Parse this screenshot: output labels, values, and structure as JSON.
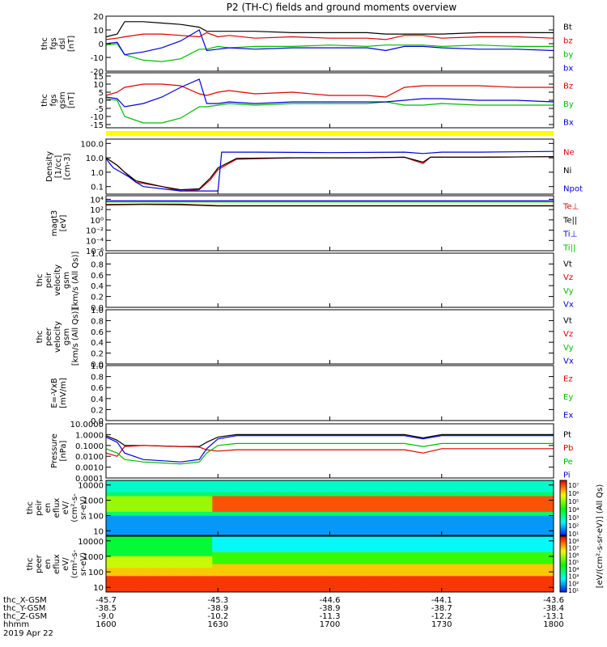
{
  "title": "P2 (TH-C) fields and ground moments overview",
  "chart_data": [
    {
      "type": "line",
      "id": "fgs_dsl",
      "ylabel": [
        "thc",
        "fgs",
        "dsl",
        "[nT]"
      ],
      "ylim": [
        -20,
        20
      ],
      "yticks": [
        "20",
        "10",
        "0",
        "-10",
        "-20"
      ],
      "yticks_values": [
        20,
        10,
        0,
        -10,
        -20
      ],
      "series": [
        {
          "name": "Bt",
          "color": "#000000",
          "x": [
            0,
            3,
            5,
            10,
            15,
            20,
            25,
            27,
            30,
            33,
            40,
            50,
            60,
            70,
            75,
            80,
            85,
            90,
            100,
            110,
            120
          ],
          "y": [
            5,
            7,
            16,
            16,
            15,
            14,
            12,
            9,
            9,
            9,
            9,
            8,
            8,
            8,
            7,
            7,
            7,
            7,
            8,
            8,
            8
          ]
        },
        {
          "name": "bz",
          "color": "#dd0000",
          "x": [
            0,
            3,
            5,
            10,
            15,
            20,
            25,
            27,
            30,
            33,
            40,
            50,
            60,
            70,
            75,
            80,
            85,
            90,
            100,
            110,
            120
          ],
          "y": [
            3,
            4,
            5,
            7,
            7,
            6,
            5,
            8,
            5,
            6,
            4,
            5,
            4,
            4,
            3,
            6,
            6,
            4,
            5,
            5,
            4
          ]
        },
        {
          "name": "by",
          "color": "#00bb00",
          "x": [
            0,
            3,
            5,
            10,
            15,
            20,
            25,
            27,
            30,
            33,
            40,
            50,
            60,
            70,
            75,
            80,
            85,
            90,
            100,
            110,
            120
          ],
          "y": [
            -1,
            0,
            -8,
            -12,
            -13,
            -11,
            -4,
            -4,
            -2,
            -3,
            -2,
            -2,
            -1,
            -2,
            -1,
            -1,
            -1,
            -2,
            -1,
            -2,
            -2
          ]
        },
        {
          "name": "bx",
          "color": "#0000dd",
          "x": [
            0,
            3,
            5,
            10,
            15,
            20,
            25,
            27,
            30,
            33,
            40,
            50,
            60,
            70,
            75,
            80,
            85,
            90,
            100,
            110,
            120
          ],
          "y": [
            0,
            1,
            -8,
            -6,
            -3,
            2,
            10,
            -5,
            -4,
            -3,
            -4,
            -3,
            -3,
            -3,
            -5,
            -2,
            -2,
            -3,
            -4,
            -4,
            -5
          ]
        }
      ]
    },
    {
      "type": "line",
      "id": "fgs_gsm",
      "ylabel": [
        "thc",
        "fgs",
        "gsm",
        "[nT]"
      ],
      "ylim": [
        -17,
        17
      ],
      "yticks": [
        "15",
        "10",
        "5",
        "0",
        "-5",
        "-10",
        "-15"
      ],
      "yticks_values": [
        15,
        10,
        5,
        0,
        -5,
        -10,
        -15
      ],
      "series": [
        {
          "name": "Bz",
          "color": "#dd0000",
          "x": [
            0,
            3,
            5,
            10,
            15,
            20,
            25,
            27,
            30,
            33,
            40,
            50,
            60,
            70,
            75,
            80,
            85,
            90,
            100,
            110,
            120
          ],
          "y": [
            3,
            5,
            8,
            10,
            10,
            9,
            4,
            3,
            5,
            6,
            4,
            5,
            3,
            3,
            2,
            8,
            9,
            9,
            9,
            8,
            8
          ]
        },
        {
          "name": "By",
          "color": "#00bb00",
          "x": [
            0,
            3,
            5,
            10,
            15,
            20,
            25,
            27,
            30,
            33,
            40,
            50,
            60,
            70,
            75,
            80,
            85,
            90,
            100,
            110,
            120
          ],
          "y": [
            1,
            0,
            -10,
            -14,
            -14,
            -11,
            -4,
            -4,
            -3,
            -2,
            -3,
            -2,
            -2,
            -2,
            -1,
            -3,
            -3,
            -2,
            -3,
            -3,
            -3
          ]
        },
        {
          "name": "Bx",
          "color": "#0000dd",
          "x": [
            0,
            3,
            5,
            10,
            15,
            20,
            25,
            27,
            30,
            33,
            40,
            50,
            60,
            70,
            75,
            80,
            85,
            90,
            100,
            110,
            120
          ],
          "y": [
            2,
            1,
            -4,
            -2,
            2,
            8,
            13,
            -2,
            -2,
            -1,
            -2,
            -1,
            -1,
            -1,
            -1,
            0,
            1,
            1,
            0,
            0,
            -1
          ]
        }
      ]
    },
    {
      "type": "line",
      "id": "density",
      "ylabel": [
        "Density",
        "[1/cc]",
        "[cm-3]"
      ],
      "scale": "log",
      "ylim": [
        0.03,
        200
      ],
      "yticks": [
        "100.0",
        "10.0",
        "1.0",
        "0.1"
      ],
      "yticks_values": [
        100,
        10,
        1,
        0.1
      ],
      "series": [
        {
          "name": "Ne",
          "color": "#dd0000",
          "x": [
            0,
            3,
            5,
            8,
            15,
            20,
            25,
            28,
            30,
            35,
            50,
            70,
            80,
            85,
            87,
            90,
            100,
            120
          ],
          "y": [
            10,
            3,
            1,
            0.2,
            0.1,
            0.05,
            0.06,
            0.3,
            1.5,
            8,
            10,
            10,
            11,
            4,
            11,
            11,
            11,
            12
          ]
        },
        {
          "name": "Ni",
          "color": "#000000",
          "x": [
            0,
            3,
            5,
            8,
            15,
            20,
            25,
            28,
            30,
            35,
            50,
            70,
            80,
            85,
            87,
            90,
            100,
            120
          ],
          "y": [
            10,
            3,
            1,
            0.25,
            0.1,
            0.06,
            0.07,
            0.4,
            2,
            9,
            10,
            10,
            11,
            5,
            11,
            11,
            11,
            12
          ]
        },
        {
          "name": "Npot",
          "color": "#0000dd",
          "x": [
            0,
            1,
            2,
            4,
            6,
            8,
            10,
            20,
            30,
            31,
            40,
            60,
            80,
            85,
            90,
            100,
            120
          ],
          "y": [
            9,
            4,
            2,
            1,
            0.5,
            0.2,
            0.1,
            0.05,
            0.05,
            25,
            25,
            23,
            25,
            20,
            25,
            25,
            28
          ]
        }
      ]
    },
    {
      "type": "line",
      "id": "magt3",
      "ylabel": [
        "magt3",
        "[eV]"
      ],
      "scale": "log",
      "ylim": [
        1e-06,
        50000
      ],
      "yticks": [
        "10⁴",
        "10²",
        "10⁰",
        "10⁻²",
        "10⁻⁴",
        "10⁻⁶"
      ],
      "yticks_values": [
        10000,
        100,
        1,
        0.01,
        0.0001,
        1e-06
      ],
      "series": [
        {
          "name": "Te⊥",
          "color": "#dd0000",
          "x": [
            0,
            10,
            20,
            30,
            60,
            90,
            120
          ],
          "y": [
            1000,
            1200,
            1100,
            600,
            600,
            600,
            600
          ]
        },
        {
          "name": "Te||",
          "color": "#000000",
          "x": [
            0,
            10,
            20,
            30,
            60,
            90,
            120
          ],
          "y": [
            800,
            1000,
            900,
            500,
            500,
            500,
            500
          ]
        },
        {
          "name": "Ti⊥",
          "color": "#0000dd",
          "x": [
            0,
            30,
            60,
            90,
            120
          ],
          "y": [
            5000,
            5000,
            5000,
            5000,
            5000
          ]
        },
        {
          "name": "Ti||",
          "color": "#00bb00",
          "x": [
            0,
            30,
            60,
            90,
            120
          ],
          "y": [
            3000,
            3000,
            3000,
            3000,
            3000
          ]
        }
      ]
    },
    {
      "type": "line",
      "id": "peir_velocity",
      "ylabel": [
        "thc",
        "peir",
        "velocity",
        "gsm",
        "[km/s (All Qs)]"
      ],
      "ylim": [
        0,
        1
      ],
      "yticks": [
        "1.0",
        "0.8",
        "0.6",
        "0.4",
        "0.2",
        "0.0"
      ],
      "yticks_values": [
        1.0,
        0.8,
        0.6,
        0.4,
        0.2,
        0.0
      ],
      "series": [
        {
          "name": "Vt",
          "color": "#000000",
          "x": [],
          "y": []
        },
        {
          "name": "Vz",
          "color": "#dd0000",
          "x": [],
          "y": []
        },
        {
          "name": "Vy",
          "color": "#00bb00",
          "x": [],
          "y": []
        },
        {
          "name": "Vx",
          "color": "#0000dd",
          "x": [],
          "y": []
        }
      ]
    },
    {
      "type": "line",
      "id": "peer_velocity",
      "ylabel": [
        "thc",
        "peer",
        "velocity",
        "gsm",
        "[km/s (All Qs)]"
      ],
      "ylim": [
        0,
        1
      ],
      "yticks": [
        "1.0",
        "0.8",
        "0.6",
        "0.4",
        "0.2",
        "0.0"
      ],
      "yticks_values": [
        1.0,
        0.8,
        0.6,
        0.4,
        0.2,
        0.0
      ],
      "series": [
        {
          "name": "Vt",
          "color": "#000000",
          "x": [],
          "y": []
        },
        {
          "name": "Vz",
          "color": "#dd0000",
          "x": [],
          "y": []
        },
        {
          "name": "Vy",
          "color": "#00bb00",
          "x": [],
          "y": []
        },
        {
          "name": "Vx",
          "color": "#0000dd",
          "x": [],
          "y": []
        }
      ]
    },
    {
      "type": "line",
      "id": "efield",
      "ylabel": [
        "E=-VxB",
        "[mV/m]"
      ],
      "ylim": [
        0,
        1
      ],
      "yticks": [
        "1.0",
        "0.8",
        "0.6",
        "0.4",
        "0.2",
        "0.0"
      ],
      "yticks_values": [
        1.0,
        0.8,
        0.6,
        0.4,
        0.2,
        0.0
      ],
      "series": [
        {
          "name": "Ez",
          "color": "#dd0000",
          "x": [],
          "y": []
        },
        {
          "name": "Ey",
          "color": "#00bb00",
          "x": [],
          "y": []
        },
        {
          "name": "Ex",
          "color": "#0000dd",
          "x": [],
          "y": []
        }
      ]
    },
    {
      "type": "line",
      "id": "pressure",
      "ylabel": [
        "Pressure",
        "[nPa]"
      ],
      "scale": "log",
      "ylim": [
        0.0001,
        10
      ],
      "yticks": [
        "10.0000",
        "1.0000",
        "0.1000",
        "0.0100",
        "0.0010",
        "0.0001"
      ],
      "yticks_values": [
        10,
        1,
        0.1,
        0.01,
        0.001,
        0.0001
      ],
      "series": [
        {
          "name": "Pt",
          "color": "#000000",
          "x": [
            0,
            3,
            5,
            10,
            20,
            25,
            27,
            30,
            35,
            50,
            80,
            85,
            90,
            100,
            120
          ],
          "y": [
            0.8,
            0.3,
            0.1,
            0.1,
            0.08,
            0.08,
            0.2,
            0.6,
            1.0,
            1.0,
            1.0,
            0.5,
            1.0,
            1.0,
            1.0
          ]
        },
        {
          "name": "Pb",
          "color": "#dd0000",
          "x": [
            0,
            3,
            5,
            10,
            20,
            25,
            27,
            30,
            35,
            50,
            80,
            85,
            90,
            100,
            120
          ],
          "y": [
            0.02,
            0.01,
            0.08,
            0.1,
            0.08,
            0.07,
            0.04,
            0.03,
            0.04,
            0.04,
            0.04,
            0.02,
            0.05,
            0.05,
            0.05
          ]
        },
        {
          "name": "Pe",
          "color": "#00bb00",
          "x": [
            0,
            3,
            5,
            10,
            20,
            25,
            27,
            30,
            35,
            50,
            80,
            85,
            90,
            100,
            120
          ],
          "y": [
            0.05,
            0.02,
            0.005,
            0.003,
            0.002,
            0.003,
            0.02,
            0.1,
            0.15,
            0.15,
            0.15,
            0.08,
            0.15,
            0.15,
            0.15
          ]
        },
        {
          "name": "Pi",
          "color": "#0000dd",
          "x": [
            0,
            3,
            5,
            10,
            20,
            25,
            27,
            30,
            35,
            50,
            80,
            85,
            90,
            100,
            120
          ],
          "y": [
            0.6,
            0.2,
            0.02,
            0.005,
            0.003,
            0.005,
            0.05,
            0.4,
            0.8,
            0.8,
            0.8,
            0.4,
            0.8,
            0.8,
            0.8
          ]
        }
      ]
    },
    {
      "type": "heatmap",
      "id": "peir_en_eflux",
      "ylabel": [
        "thc",
        "peir",
        "en",
        "eflux",
        "eV/",
        "(cm²-s-",
        "sr-eV)"
      ],
      "scale": "log",
      "ylim": [
        5,
        20000
      ],
      "yticks": [
        "10000",
        "1000",
        "100",
        "10"
      ],
      "yticks_values": [
        10000,
        1000,
        100,
        10
      ]
    },
    {
      "type": "heatmap",
      "id": "peer_en_eflux",
      "ylabel": [
        "thc",
        "peer",
        "en",
        "eflux",
        "eV/",
        "(cm²-s-",
        "sr-eV)"
      ],
      "scale": "log",
      "ylim": [
        5,
        20000
      ],
      "yticks": [
        "10000",
        "1000",
        "100",
        "10"
      ],
      "yticks_values": [
        10000,
        1000,
        100,
        10
      ]
    }
  ],
  "colorbar": {
    "label": "[eV/(cm²-s-sr-eV)] (All Qs)",
    "ticks": [
      "10⁷",
      "10⁶",
      "10⁵",
      "10⁴",
      "10³",
      "10²",
      "10¹"
    ],
    "ticks2": [
      "10⁸",
      "10⁷",
      "10⁶",
      "10⁵",
      "10⁴",
      "10³",
      "10²",
      "10¹"
    ]
  },
  "xaxis": {
    "rows": [
      {
        "label": "thc_X-GSM",
        "values": [
          "-45.7",
          "-45.3",
          "-44.6",
          "-44.1",
          "-43.6"
        ]
      },
      {
        "label": "thc_Y-GSM",
        "values": [
          "-38.5",
          "-38.9",
          "-38.9",
          "-38.7",
          "-38.4"
        ]
      },
      {
        "label": "thc_Z-GSM",
        "values": [
          "-9.0",
          "-10.2",
          "-11.3",
          "-12.2",
          "-13.1"
        ]
      },
      {
        "label": "hhmm",
        "values": [
          "1600",
          "1630",
          "1700",
          "1730",
          "1800"
        ]
      }
    ],
    "date": "2019 Apr 22",
    "tick_minutes": [
      0,
      30,
      60,
      90,
      120
    ]
  }
}
